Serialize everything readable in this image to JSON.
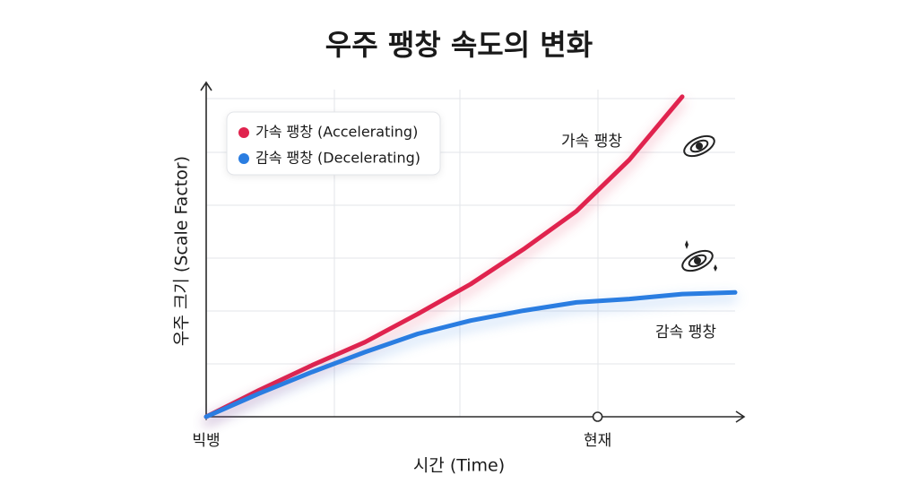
{
  "chart_data": {
    "type": "line",
    "title": "우주 팽창 속도의 변화",
    "xlabel": "시간 (Time)",
    "ylabel": "우주 크기 (Scale Factor)",
    "x": [
      0,
      1,
      2,
      3,
      4,
      5,
      6,
      7,
      8,
      9,
      10
    ],
    "xlim": [
      0,
      10
    ],
    "ylim": [
      0,
      10
    ],
    "xticks": [
      {
        "value": 0,
        "label": "빅뱅"
      },
      {
        "value": 7.4,
        "label": "현재"
      }
    ],
    "series": [
      {
        "name": "가속 팽창 (Accelerating)",
        "color": "#e0234e",
        "values": [
          0,
          0.8,
          1.55,
          2.25,
          3.1,
          4.0,
          5.05,
          6.2,
          7.75,
          9.65,
          null
        ]
      },
      {
        "name": "감속 팽창 (Decelerating)",
        "color": "#2a7de1",
        "values": [
          0,
          0.7,
          1.35,
          1.95,
          2.5,
          2.9,
          3.2,
          3.45,
          3.55,
          3.7,
          3.75
        ]
      }
    ],
    "annotations": [
      {
        "text": "가속 팽창"
      },
      {
        "text": "감속 팽창"
      }
    ],
    "legend": "upper left"
  }
}
